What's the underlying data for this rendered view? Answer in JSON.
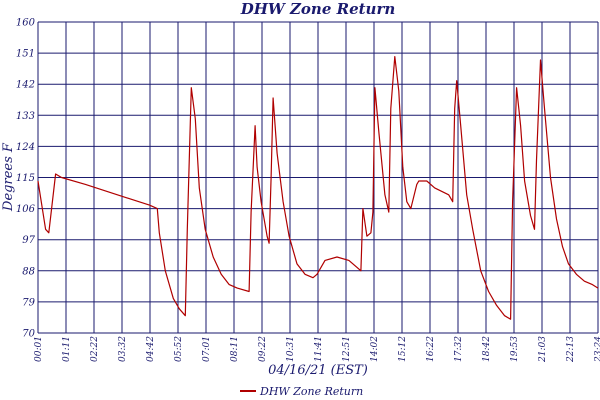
{
  "colors": {
    "series": "#b00000",
    "grid": "#1a1a6e",
    "text": "#1a1a6e"
  },
  "chart_data": {
    "type": "line",
    "title": "DHW Zone Return",
    "xlabel": "04/16/21 (EST)",
    "ylabel": "Degrees F",
    "ylim": [
      70,
      160
    ],
    "yticks": [
      "70",
      "79",
      "88",
      "97",
      "106",
      "115",
      "124",
      "133",
      "142",
      "151",
      "160"
    ],
    "xticks": [
      "00:01",
      "01:11",
      "02:22",
      "03:32",
      "04:42",
      "05:52",
      "07:01",
      "08:11",
      "09:22",
      "10:31",
      "11:41",
      "12:51",
      "14:02",
      "15:12",
      "16:22",
      "17:32",
      "18:42",
      "19:53",
      "21:03",
      "22:13",
      "23:24"
    ],
    "xlim_minutes": [
      1,
      1404
    ],
    "grid": true,
    "legend": {
      "placement": "bottom",
      "entries": [
        "DHW Zone Return"
      ]
    },
    "series": [
      {
        "name": "DHW Zone Return",
        "points": [
          [
            1,
            114
          ],
          [
            20,
            100
          ],
          [
            28,
            99
          ],
          [
            45,
            116
          ],
          [
            60,
            115
          ],
          [
            120,
            113
          ],
          [
            200,
            110
          ],
          [
            280,
            107
          ],
          [
            300,
            106
          ],
          [
            305,
            99
          ],
          [
            320,
            88
          ],
          [
            340,
            80
          ],
          [
            355,
            77
          ],
          [
            370,
            75
          ],
          [
            375,
            100
          ],
          [
            385,
            141
          ],
          [
            395,
            132
          ],
          [
            405,
            112
          ],
          [
            420,
            100
          ],
          [
            440,
            92
          ],
          [
            460,
            87
          ],
          [
            480,
            84
          ],
          [
            500,
            83
          ],
          [
            530,
            82
          ],
          [
            535,
            105
          ],
          [
            545,
            130
          ],
          [
            550,
            118
          ],
          [
            560,
            108
          ],
          [
            575,
            98
          ],
          [
            580,
            96
          ],
          [
            585,
            115
          ],
          [
            590,
            138
          ],
          [
            600,
            122
          ],
          [
            615,
            108
          ],
          [
            630,
            98
          ],
          [
            650,
            90
          ],
          [
            670,
            87
          ],
          [
            690,
            86
          ],
          [
            700,
            87
          ],
          [
            720,
            91
          ],
          [
            750,
            92
          ],
          [
            780,
            91
          ],
          [
            800,
            89
          ],
          [
            810,
            88
          ],
          [
            815,
            106
          ],
          [
            825,
            98
          ],
          [
            835,
            99
          ],
          [
            840,
            105
          ],
          [
            845,
            141
          ],
          [
            855,
            128
          ],
          [
            870,
            110
          ],
          [
            880,
            105
          ],
          [
            885,
            135
          ],
          [
            895,
            150
          ],
          [
            905,
            140
          ],
          [
            915,
            118
          ],
          [
            925,
            108
          ],
          [
            935,
            106
          ],
          [
            950,
            113
          ],
          [
            955,
            114
          ],
          [
            975,
            114
          ],
          [
            995,
            112
          ],
          [
            1030,
            110
          ],
          [
            1040,
            108
          ],
          [
            1045,
            135
          ],
          [
            1050,
            143
          ],
          [
            1060,
            130
          ],
          [
            1075,
            110
          ],
          [
            1090,
            100
          ],
          [
            1110,
            88
          ],
          [
            1130,
            82
          ],
          [
            1150,
            78
          ],
          [
            1170,
            75
          ],
          [
            1185,
            74
          ],
          [
            1190,
            108
          ],
          [
            1200,
            141
          ],
          [
            1210,
            130
          ],
          [
            1220,
            114
          ],
          [
            1235,
            104
          ],
          [
            1245,
            100
          ],
          [
            1250,
            120
          ],
          [
            1260,
            149
          ],
          [
            1270,
            135
          ],
          [
            1285,
            115
          ],
          [
            1300,
            103
          ],
          [
            1315,
            95
          ],
          [
            1330,
            90
          ],
          [
            1350,
            87
          ],
          [
            1370,
            85
          ],
          [
            1390,
            84
          ],
          [
            1404,
            83
          ]
        ]
      }
    ]
  }
}
